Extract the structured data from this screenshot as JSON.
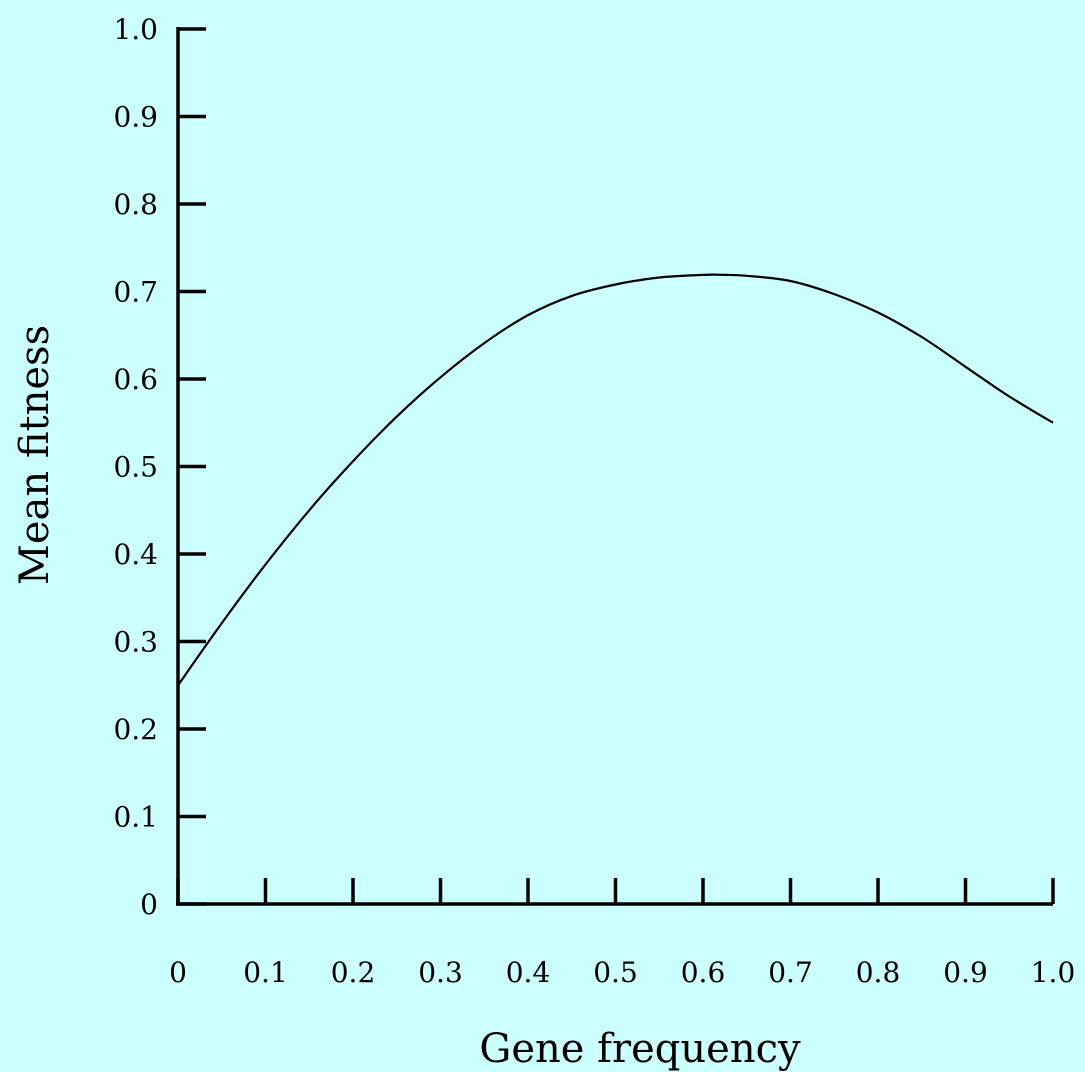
{
  "chart_data": {
    "type": "line",
    "title": "",
    "xlabel": "Gene frequency",
    "ylabel": "Mean fitness",
    "xlim": [
      0,
      1.0
    ],
    "ylim": [
      0,
      1.0
    ],
    "grid": false,
    "x_ticks": [
      "0",
      "0.1",
      "0.2",
      "0.3",
      "0.4",
      "0.5",
      "0.6",
      "0.7",
      "0.8",
      "0.9",
      "1.0"
    ],
    "y_ticks": [
      "0",
      "0.1",
      "0.2",
      "0.3",
      "0.4",
      "0.5",
      "0.6",
      "0.7",
      "0.8",
      "0.9",
      "1.0"
    ],
    "series": [
      {
        "x": [
          0,
          0.05,
          0.1,
          0.15,
          0.2,
          0.25,
          0.3,
          0.35,
          0.4,
          0.45,
          0.5,
          0.55,
          0.6,
          0.625,
          0.65,
          0.7,
          0.75,
          0.8,
          0.85,
          0.9,
          0.95,
          1.0
        ],
        "values": [
          0.25,
          0.321,
          0.388,
          0.45,
          0.506,
          0.557,
          0.602,
          0.641,
          0.673,
          0.695,
          0.708,
          0.716,
          0.719,
          0.719,
          0.718,
          0.712,
          0.697,
          0.676,
          0.648,
          0.614,
          0.58,
          0.55
        ]
      }
    ]
  }
}
